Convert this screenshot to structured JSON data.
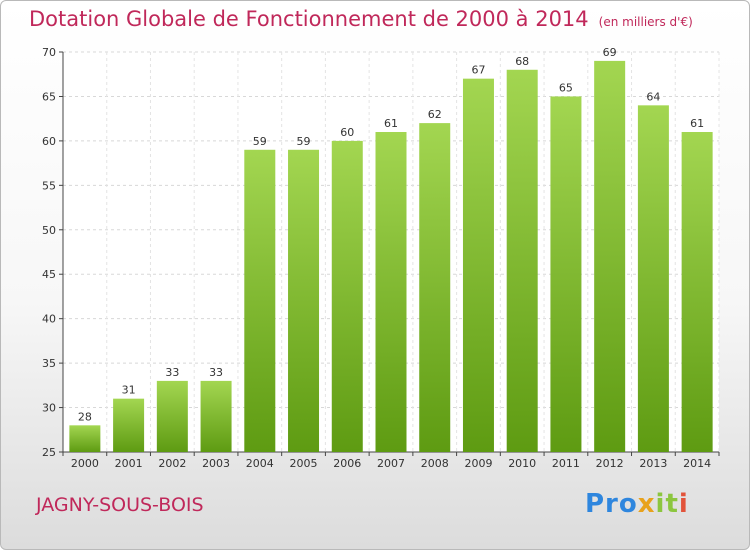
{
  "title": "Dotation Globale de Fonctionnement de 2000 à 2014",
  "subtitle": "(en milliers d'€)",
  "place": "JAGNY-SOUS-BOIS",
  "logo": {
    "p1": "Pro",
    "p2": "x",
    "p3": "it",
    "p4": "i"
  },
  "colors": {
    "title": "#c0285a",
    "bar_top": "#9fd44e",
    "bar_bottom": "#5d9a12"
  },
  "chart_data": {
    "type": "bar",
    "categories": [
      "2000",
      "2001",
      "2002",
      "2003",
      "2004",
      "2005",
      "2006",
      "2007",
      "2008",
      "2009",
      "2010",
      "2011",
      "2012",
      "2013",
      "2014"
    ],
    "values": [
      28,
      31,
      33,
      33,
      59,
      59,
      60,
      61,
      62,
      67,
      68,
      65,
      69,
      64,
      61
    ],
    "yticks": [
      25,
      30,
      35,
      40,
      45,
      50,
      55,
      60,
      65,
      70
    ],
    "ylim": [
      25,
      70
    ],
    "grid": true
  }
}
